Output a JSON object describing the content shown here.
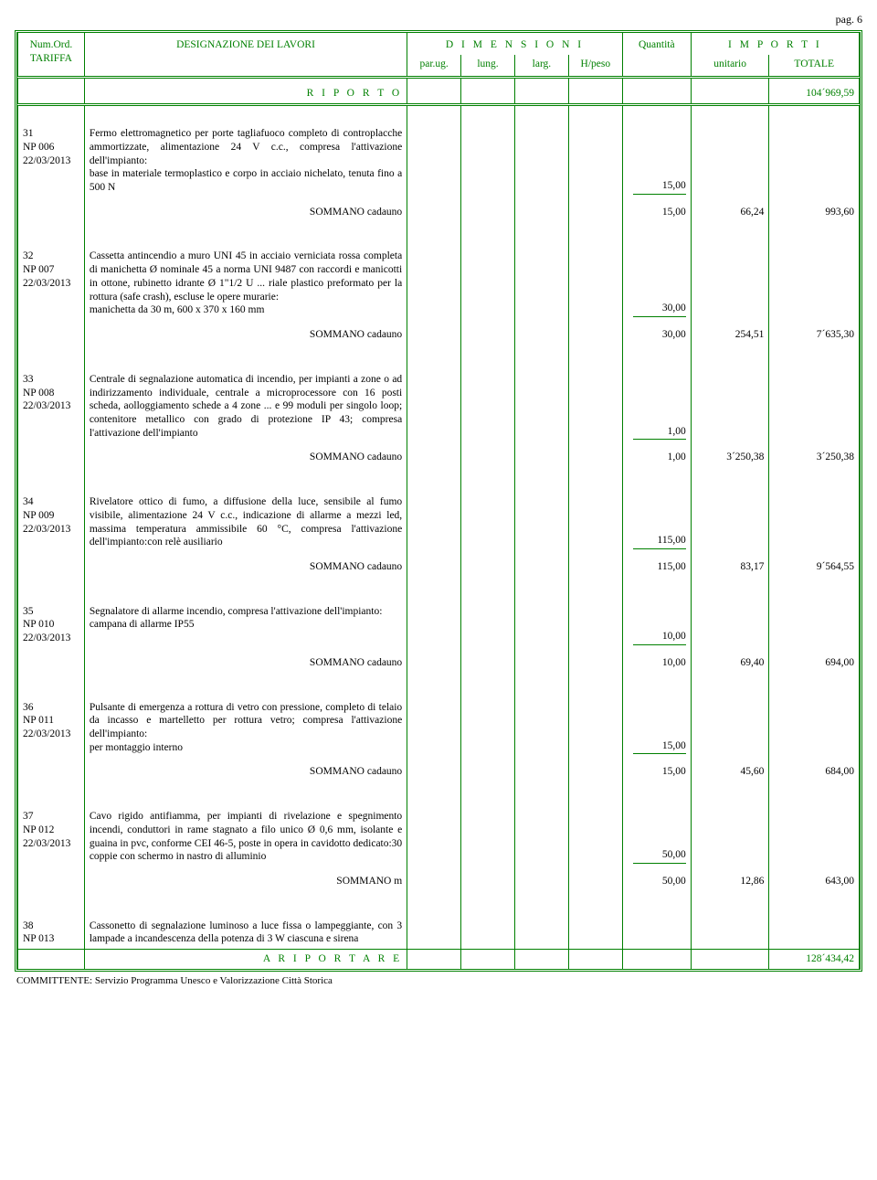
{
  "page_label": "pag. 6",
  "header": {
    "numord": "Num.Ord.",
    "tariffa": "TARIFFA",
    "designazione": "DESIGNAZIONE DEI LAVORI",
    "dimensioni": "D I M E N S I O N I",
    "parug": "par.ug.",
    "lung": "lung.",
    "larg": "larg.",
    "hpeso": "H/peso",
    "quantita": "Quantità",
    "importi": "I M P O R T I",
    "unitario": "unitario",
    "totale": "TOTALE"
  },
  "riporto_label": "R I P O R T O",
  "riporto_value": "104´969,59",
  "items": [
    {
      "num": "31",
      "code": "NP 006",
      "date": "22/03/2013",
      "desc": "Fermo elettromagnetico per porte tagliafuoco completo di controplacche ammortizzate, alimentazione 24 V c.c., compresa l'attivazione dell'impianto:\nbase in materiale termoplastico e corpo in acciaio nichelato, tenuta fino a 500 N",
      "qty": "15,00",
      "sommano": "SOMMANO cadauno",
      "sum_qty": "15,00",
      "unit": "66,24",
      "total": "993,60"
    },
    {
      "num": "32",
      "code": "NP 007",
      "date": "22/03/2013",
      "desc": "Cassetta antincendio a muro UNI 45 in acciaio verniciata rossa completa di manichetta Ø nominale 45 a norma UNI 9487 con raccordi e manicotti in ottone, rubinetto idrante Ø 1\"1/2 U ... riale plastico preformato per la rottura (safe crash), escluse le opere murarie:\nmanichetta da 30 m, 600 x 370 x 160 mm",
      "qty": "30,00",
      "sommano": "SOMMANO cadauno",
      "sum_qty": "30,00",
      "unit": "254,51",
      "total": "7´635,30"
    },
    {
      "num": "33",
      "code": "NP 008",
      "date": "22/03/2013",
      "desc": "Centrale di segnalazione automatica di incendio, per impianti a zone o ad indirizzamento individuale, centrale a microprocessore con 16 posti scheda, aolloggiamento schede a 4 zone ... e 99 moduli per singolo loop; contenitore metallico con grado di protezione IP 43; compresa l'attivazione dell'impianto",
      "qty": "1,00",
      "sommano": "SOMMANO cadauno",
      "sum_qty": "1,00",
      "unit": "3´250,38",
      "total": "3´250,38"
    },
    {
      "num": "34",
      "code": "NP 009",
      "date": "22/03/2013",
      "desc": "Rivelatore ottico di fumo, a diffusione della luce, sensibile al fumo visibile, alimentazione 24 V c.c., indicazione di allarme a mezzi led, massima temperatura ammissibile 60 °C, compresa l'attivazione dell'impianto:con relè ausiliario",
      "qty": "115,00",
      "sommano": "SOMMANO cadauno",
      "sum_qty": "115,00",
      "unit": "83,17",
      "total": "9´564,55"
    },
    {
      "num": "35",
      "code": "NP 010",
      "date": "22/03/2013",
      "desc": "Segnalatore di allarme incendio, compresa l'attivazione dell'impianto:\ncampana di allarme IP55",
      "qty": "10,00",
      "sommano": "SOMMANO cadauno",
      "sum_qty": "10,00",
      "unit": "69,40",
      "total": "694,00"
    },
    {
      "num": "36",
      "code": "NP 011",
      "date": "22/03/2013",
      "desc": "Pulsante di emergenza a rottura di vetro con pressione, completo di telaio da incasso e martelletto per rottura vetro; compresa l'attivazione dell'impianto:\nper montaggio interno",
      "qty": "15,00",
      "sommano": "SOMMANO cadauno",
      "sum_qty": "15,00",
      "unit": "45,60",
      "total": "684,00"
    },
    {
      "num": "37",
      "code": "NP 012",
      "date": "22/03/2013",
      "desc": "Cavo rigido antifiamma, per impianti di rivelazione e spegnimento incendi, conduttori in rame stagnato a filo unico Ø 0,6 mm, isolante e guaina in pvc, conforme CEI 46-5, poste in opera in cavidotto dedicato:30 coppie con schermo in nastro di alluminio",
      "qty": "50,00",
      "sommano": "SOMMANO m",
      "sum_qty": "50,00",
      "unit": "12,86",
      "total": "643,00"
    }
  ],
  "last_item": {
    "num": "38",
    "code": "NP 013",
    "desc": "Cassonetto di segnalazione luminoso a luce fissa o lampeggiante, con 3 lampade a incandescenza della potenza di 3 W ciascuna e sirena"
  },
  "riportare_label": "A   R I P O R T A R E",
  "riportare_value": "128´434,42",
  "committente": "COMMITTENTE: Servizio Programma Unesco e Valorizzazione Città Storica",
  "colors": {
    "border": "#008000",
    "text": "#000000",
    "header_text": "#008000",
    "bg": "#ffffff"
  }
}
